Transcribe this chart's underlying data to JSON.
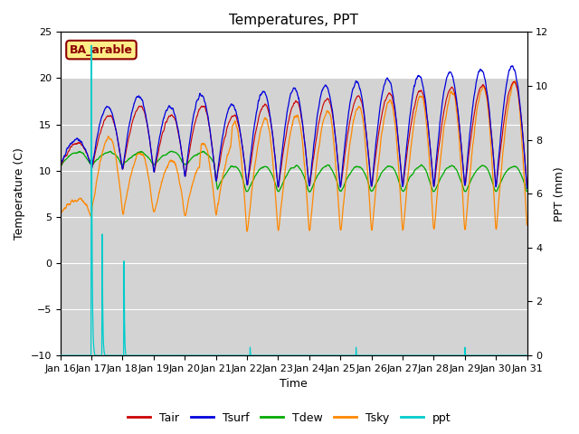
{
  "title": "Temperatures, PPT",
  "xlabel": "Time",
  "ylabel_left": "Temperature (C)",
  "ylabel_right": "PPT (mm)",
  "legend_label": "BA_arable",
  "legend_entries": [
    "Tair",
    "Tsurf",
    "Tdew",
    "Tsky",
    "ppt"
  ],
  "legend_colors": [
    "#cc0000",
    "#0000dd",
    "#00aa00",
    "#ff8800",
    "#00cccc"
  ],
  "ylim_left": [
    -10,
    25
  ],
  "ylim_right": [
    0,
    12
  ],
  "tick_dates": [
    "Jan 16",
    "Jan 17",
    "Jan 18",
    "Jan 19",
    "Jan 20",
    "Jan 21",
    "Jan 22",
    "Jan 23",
    "Jan 24",
    "Jan 25",
    "Jan 26",
    "Jan 27",
    "Jan 28",
    "Jan 29",
    "Jan 30",
    "Jan 31"
  ],
  "plot_bg": "#d8d8d8",
  "title_fontsize": 11
}
